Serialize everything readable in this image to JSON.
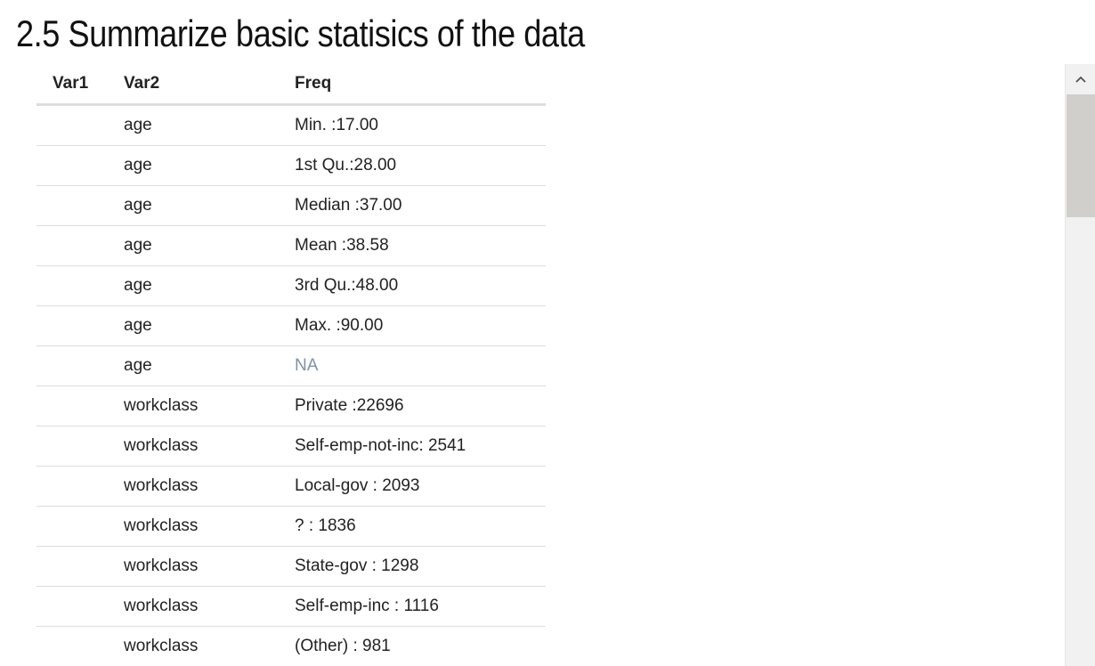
{
  "title": "2.5 Summarize basic statisics of the data",
  "table": {
    "headers": {
      "var1": "Var1",
      "var2": "Var2",
      "freq": "Freq"
    },
    "rows": [
      {
        "var1": "",
        "var2": "age",
        "freq": "Min. :17.00",
        "na": false
      },
      {
        "var1": "",
        "var2": "age",
        "freq": "1st Qu.:28.00",
        "na": false
      },
      {
        "var1": "",
        "var2": "age",
        "freq": "Median :37.00",
        "na": false
      },
      {
        "var1": "",
        "var2": "age",
        "freq": "Mean :38.58",
        "na": false
      },
      {
        "var1": "",
        "var2": "age",
        "freq": "3rd Qu.:48.00",
        "na": false
      },
      {
        "var1": "",
        "var2": "age",
        "freq": "Max. :90.00",
        "na": false
      },
      {
        "var1": "",
        "var2": "age",
        "freq": "NA",
        "na": true
      },
      {
        "var1": "",
        "var2": "workclass",
        "freq": "Private :22696",
        "na": false
      },
      {
        "var1": "",
        "var2": "workclass",
        "freq": "Self-emp-not-inc: 2541",
        "na": false
      },
      {
        "var1": "",
        "var2": "workclass",
        "freq": "Local-gov : 2093",
        "na": false
      },
      {
        "var1": "",
        "var2": "workclass",
        "freq": "? : 1836",
        "na": false
      },
      {
        "var1": "",
        "var2": "workclass",
        "freq": "State-gov : 1298",
        "na": false
      },
      {
        "var1": "",
        "var2": "workclass",
        "freq": "Self-emp-inc : 1116",
        "na": false
      },
      {
        "var1": "",
        "var2": "workclass",
        "freq": "(Other) : 981",
        "na": false
      }
    ]
  },
  "scrollbar": {
    "up_icon": "chevron-up-icon",
    "position": 0
  },
  "colors": {
    "na_text": "#7f93a8",
    "row_border": "#dddddd",
    "scroll_thumb": "#d0cfcb"
  }
}
